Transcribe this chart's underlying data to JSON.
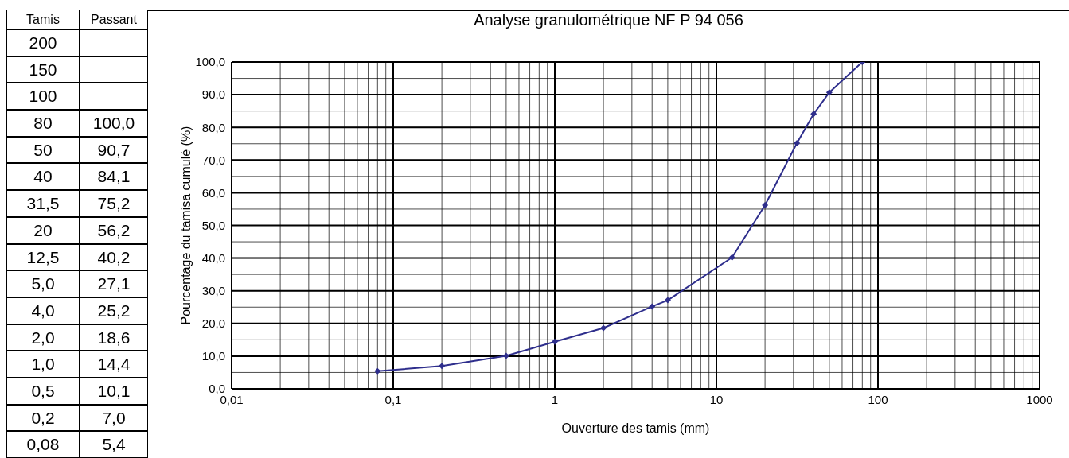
{
  "chart_data": [
    {
      "type": "other",
      "xlabel": "Tamis",
      "ylabel": "Passant",
      "categories": [
        "200",
        "150",
        "100",
        "80",
        "50",
        "40",
        "31,5",
        "20",
        "12,5",
        "5,0",
        "4,0",
        "2,0",
        "1,0",
        "0,5",
        "0,2",
        "0,08"
      ],
      "value_labels": [
        null,
        null,
        null,
        "100,0",
        "90,7",
        "84,1",
        "75,2",
        "56,2",
        "40,2",
        "27,1",
        "25,2",
        "18,6",
        "14,4",
        "10,1",
        "7,0",
        "5,4"
      ]
    },
    {
      "type": "line",
      "title": "Analyse granulométrique NF P 94 056",
      "xlabel": "Ouverture des tamis (mm)",
      "ylabel": "Pourcentage du tamisa cumulé (%)",
      "x": [
        80,
        50,
        40,
        31.5,
        20,
        12.5,
        5,
        4,
        2,
        1,
        0.5,
        0.2,
        0.08
      ],
      "series": [
        {
          "color": "#2e2e8c",
          "values": [
            100,
            90.7,
            84.1,
            75.2,
            56.2,
            40.2,
            27.1,
            25.2,
            18.6,
            14.4,
            10.1,
            7.0,
            5.4
          ]
        }
      ],
      "log": "x",
      "xlim": [
        0.01,
        1000
      ],
      "xticks": [
        {
          "value": 0.01,
          "label": "0,01"
        },
        {
          "value": 0.1,
          "label": "0,1"
        },
        1,
        10,
        100,
        1000
      ],
      "ylim": [
        0,
        100
      ],
      "yticks": [
        {
          "value": 0,
          "label": "0,0"
        },
        {
          "value": 10,
          "label": "10,0"
        },
        {
          "value": 20,
          "label": "20,0"
        },
        {
          "value": 30,
          "label": "30,0"
        },
        {
          "value": 40,
          "label": "40,0"
        },
        {
          "value": 50,
          "label": "50,0"
        },
        {
          "value": 60,
          "label": "60,0"
        },
        {
          "value": 70,
          "label": "70,0"
        },
        {
          "value": 80,
          "label": "80,0"
        },
        {
          "value": 90,
          "label": "90,0"
        },
        {
          "value": 100,
          "label": "100,0"
        }
      ],
      "grid": true,
      "marker": "diamond",
      "line_style": "solid"
    }
  ]
}
